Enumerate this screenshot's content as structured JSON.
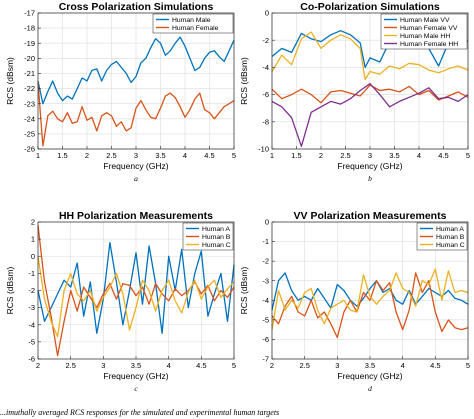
{
  "figure_caption": "...imuthally averaged RCS responses for the simulated and experimental human targets",
  "chart_data": [
    {
      "type": "line",
      "title": "Cross Polarization Simulations",
      "xlabel": "Frequency (GHz)",
      "ylabel": "RCS (dBsm)",
      "sublabel": "a",
      "xlim": [
        1,
        5
      ],
      "ylim": [
        -26,
        -17
      ],
      "xticks": [
        1,
        1.5,
        2,
        2.5,
        3,
        3.5,
        4,
        4.5,
        5
      ],
      "yticks": [
        -26,
        -25,
        -24,
        -23,
        -22,
        -21,
        -20,
        -19,
        -18,
        -17
      ],
      "grid": true,
      "legend_position": "top-right",
      "series": [
        {
          "name": "Human Male",
          "color": "#0072BD",
          "x": [
            1.0,
            1.1,
            1.2,
            1.3,
            1.4,
            1.5,
            1.6,
            1.7,
            1.8,
            1.9,
            2.0,
            2.1,
            2.2,
            2.3,
            2.4,
            2.5,
            2.6,
            2.7,
            2.8,
            2.9,
            3.0,
            3.1,
            3.2,
            3.3,
            3.4,
            3.5,
            3.6,
            3.7,
            3.8,
            3.9,
            4.0,
            4.1,
            4.2,
            4.3,
            4.4,
            4.5,
            4.6,
            4.7,
            4.8,
            4.9,
            5.0
          ],
          "y": [
            -21.5,
            -23.0,
            -22.2,
            -21.5,
            -22.3,
            -22.8,
            -22.5,
            -22.7,
            -22.0,
            -21.3,
            -21.5,
            -20.8,
            -20.7,
            -21.5,
            -20.8,
            -20.4,
            -20.2,
            -20.6,
            -21.0,
            -21.6,
            -21.2,
            -20.3,
            -20.0,
            -19.3,
            -18.7,
            -19.0,
            -19.8,
            -19.5,
            -19.0,
            -18.6,
            -19.2,
            -20.0,
            -20.8,
            -20.6,
            -20.0,
            -19.6,
            -19.5,
            -19.9,
            -20.2,
            -19.5,
            -18.8
          ]
        },
        {
          "name": "Human Female",
          "color": "#D95319",
          "x": [
            1.0,
            1.1,
            1.2,
            1.3,
            1.4,
            1.5,
            1.6,
            1.7,
            1.8,
            1.9,
            2.0,
            2.1,
            2.2,
            2.3,
            2.4,
            2.5,
            2.6,
            2.7,
            2.8,
            2.9,
            3.0,
            3.1,
            3.2,
            3.3,
            3.4,
            3.5,
            3.6,
            3.7,
            3.8,
            3.9,
            4.0,
            4.1,
            4.2,
            4.3,
            4.4,
            4.5,
            4.6,
            4.7,
            4.8,
            4.9,
            5.0
          ],
          "y": [
            -21.6,
            -25.8,
            -23.8,
            -23.5,
            -24.0,
            -24.2,
            -23.6,
            -24.3,
            -24.2,
            -23.2,
            -24.1,
            -23.9,
            -24.8,
            -23.8,
            -23.6,
            -23.8,
            -24.5,
            -24.2,
            -24.8,
            -24.6,
            -23.3,
            -22.8,
            -23.4,
            -23.9,
            -24.0,
            -23.3,
            -22.5,
            -22.3,
            -22.6,
            -23.2,
            -23.9,
            -23.4,
            -22.7,
            -22.3,
            -23.4,
            -23.6,
            -24.0,
            -23.6,
            -23.2,
            -23.0,
            -22.8
          ]
        }
      ]
    },
    {
      "type": "line",
      "title": "Co-Polarization Simulations",
      "xlabel": "Frequency (GHz)",
      "ylabel": "RCS (dBsm)",
      "sublabel": "b",
      "xlim": [
        1,
        5
      ],
      "ylim": [
        -10,
        0
      ],
      "xticks": [
        1,
        1.5,
        2,
        2.5,
        3,
        3.5,
        4,
        4.5,
        5
      ],
      "yticks": [
        -10,
        -8,
        -6,
        -4,
        -2,
        0
      ],
      "grid": true,
      "legend_position": "top-right",
      "series": [
        {
          "name": "Human Male VV",
          "color": "#0072BD",
          "x": [
            1.0,
            1.2,
            1.4,
            1.6,
            1.8,
            2.0,
            2.2,
            2.4,
            2.6,
            2.8,
            2.9,
            3.0,
            3.2,
            3.4,
            3.6,
            3.8,
            4.0,
            4.2,
            4.4,
            4.6,
            4.8,
            5.0
          ],
          "y": [
            -3.2,
            -2.6,
            -2.9,
            -1.5,
            -1.9,
            -2.1,
            -1.6,
            -1.3,
            -1.6,
            -2.2,
            -4.0,
            -3.3,
            -3.6,
            -2.1,
            -1.2,
            -1.6,
            -1.0,
            -2.6,
            -3.9,
            -2.2,
            -1.6,
            -2.1
          ]
        },
        {
          "name": "Human Female VV",
          "color": "#D95319",
          "x": [
            1.0,
            1.2,
            1.4,
            1.6,
            1.8,
            2.0,
            2.2,
            2.4,
            2.6,
            2.8,
            3.0,
            3.2,
            3.4,
            3.6,
            3.8,
            4.0,
            4.2,
            4.4,
            4.6,
            4.8,
            5.0
          ],
          "y": [
            -5.6,
            -6.3,
            -6.0,
            -5.6,
            -6.0,
            -6.6,
            -5.8,
            -5.7,
            -5.9,
            -6.1,
            -5.3,
            -5.7,
            -5.6,
            -5.8,
            -5.4,
            -6.0,
            -5.7,
            -6.4,
            -6.1,
            -5.8,
            -6.2
          ]
        },
        {
          "name": "Human Male HH",
          "color": "#EDB120",
          "x": [
            1.0,
            1.2,
            1.4,
            1.6,
            1.8,
            2.0,
            2.2,
            2.4,
            2.6,
            2.8,
            2.9,
            3.0,
            3.2,
            3.4,
            3.6,
            3.8,
            4.0,
            4.2,
            4.4,
            4.6,
            4.8,
            5.0
          ],
          "y": [
            -4.3,
            -3.1,
            -3.8,
            -1.9,
            -1.4,
            -2.6,
            -2.0,
            -1.6,
            -1.9,
            -2.6,
            -4.9,
            -4.3,
            -4.5,
            -3.9,
            -4.1,
            -3.7,
            -3.8,
            -4.2,
            -4.4,
            -4.1,
            -3.9,
            -4.2
          ]
        },
        {
          "name": "Human Female HH",
          "color": "#7E2F8E",
          "x": [
            1.0,
            1.2,
            1.4,
            1.6,
            1.8,
            2.0,
            2.2,
            2.4,
            2.6,
            2.8,
            3.0,
            3.2,
            3.4,
            3.6,
            3.8,
            4.0,
            4.2,
            4.4,
            4.6,
            4.8,
            5.0
          ],
          "y": [
            -6.5,
            -6.9,
            -7.7,
            -9.8,
            -7.3,
            -6.9,
            -6.5,
            -6.7,
            -6.3,
            -5.7,
            -5.2,
            -6.0,
            -6.9,
            -6.5,
            -6.2,
            -5.9,
            -5.5,
            -6.3,
            -6.2,
            -6.5,
            -6.0
          ]
        }
      ]
    },
    {
      "type": "line",
      "title": "HH Polarization Measurements",
      "xlabel": "Frequency (GHz)",
      "ylabel": "RCS (dBsm)",
      "sublabel": "c",
      "xlim": [
        2,
        5
      ],
      "ylim": [
        -6,
        2
      ],
      "xticks": [
        2,
        2.5,
        3,
        3.5,
        4,
        4.5,
        5
      ],
      "yticks": [
        -6,
        -5,
        -4,
        -3,
        -2,
        -1,
        0,
        1,
        2
      ],
      "grid": true,
      "legend_position": "top-right",
      "series": [
        {
          "name": "Human A",
          "color": "#0072BD",
          "x": [
            2.0,
            2.1,
            2.2,
            2.3,
            2.4,
            2.5,
            2.6,
            2.7,
            2.8,
            2.9,
            3.0,
            3.1,
            3.2,
            3.3,
            3.4,
            3.5,
            3.6,
            3.7,
            3.8,
            3.9,
            4.0,
            4.1,
            4.2,
            4.3,
            4.4,
            4.5,
            4.6,
            4.7,
            4.8,
            4.9,
            5.0
          ],
          "y": [
            -2.0,
            -3.8,
            -3.0,
            -2.2,
            -1.4,
            -1.8,
            -0.4,
            -3.5,
            -1.5,
            -4.5,
            -2.5,
            0.8,
            -1.5,
            -4.0,
            -2.0,
            0.2,
            -2.8,
            0.6,
            -1.6,
            -4.5,
            0.0,
            -2.0,
            0.4,
            -3.0,
            -1.0,
            0.3,
            -3.5,
            -2.2,
            -1.0,
            -3.8,
            -0.5
          ]
        },
        {
          "name": "Human B",
          "color": "#D95319",
          "x": [
            2.0,
            2.1,
            2.2,
            2.3,
            2.4,
            2.5,
            2.6,
            2.7,
            2.8,
            2.9,
            3.0,
            3.1,
            3.2,
            3.3,
            3.4,
            3.5,
            3.6,
            3.7,
            3.8,
            3.9,
            4.0,
            4.1,
            4.2,
            4.3,
            4.4,
            4.5,
            4.6,
            4.7,
            4.8,
            4.9,
            5.0
          ],
          "y": [
            1.8,
            -1.5,
            -3.5,
            -5.8,
            -3.8,
            -2.0,
            -3.2,
            -1.8,
            -2.4,
            -3.0,
            -2.2,
            -1.6,
            -2.5,
            -1.6,
            -1.7,
            -2.3,
            -1.8,
            -2.8,
            -1.6,
            -2.2,
            -2.6,
            -1.9,
            -2.3,
            -2.0,
            -1.5,
            -2.2,
            -1.7,
            -2.6,
            -2.0,
            -2.4,
            -1.8
          ]
        },
        {
          "name": "Human C",
          "color": "#EDB120",
          "x": [
            2.0,
            2.1,
            2.2,
            2.3,
            2.4,
            2.5,
            2.6,
            2.7,
            2.8,
            2.9,
            3.0,
            3.1,
            3.2,
            3.3,
            3.4,
            3.5,
            3.6,
            3.7,
            3.8,
            3.9,
            4.0,
            4.1,
            4.2,
            4.3,
            4.4,
            4.5,
            4.6,
            4.7,
            4.8,
            4.9,
            5.0
          ],
          "y": [
            0.0,
            -2.5,
            -3.8,
            -4.7,
            -2.0,
            -1.0,
            -2.2,
            -2.6,
            -2.0,
            -3.2,
            -2.4,
            -1.8,
            -1.0,
            -2.2,
            -4.3,
            -3.0,
            -1.4,
            -2.0,
            -3.2,
            -2.0,
            -1.4,
            -2.6,
            -3.3,
            -2.1,
            -1.4,
            -2.5,
            -1.8,
            -1.4,
            -2.4,
            -1.9,
            -1.5
          ]
        }
      ]
    },
    {
      "type": "line",
      "title": "VV Polarization Measurements",
      "xlabel": "Frequency (GHz)",
      "ylabel": "RCS (dBsm)",
      "sublabel": "d",
      "xlim": [
        2,
        5
      ],
      "ylim": [
        -7,
        0
      ],
      "xticks": [
        2,
        2.5,
        3,
        3.5,
        4,
        4.5,
        5
      ],
      "yticks": [
        -7,
        -6,
        -5,
        -4,
        -3,
        -2,
        -1,
        0
      ],
      "grid": true,
      "legend_position": "top-right",
      "series": [
        {
          "name": "Human A",
          "color": "#0072BD",
          "x": [
            2.0,
            2.1,
            2.2,
            2.3,
            2.4,
            2.5,
            2.6,
            2.7,
            2.8,
            2.9,
            3.0,
            3.1,
            3.2,
            3.3,
            3.4,
            3.5,
            3.6,
            3.7,
            3.8,
            3.9,
            4.0,
            4.1,
            4.2,
            4.3,
            4.4,
            4.5,
            4.6,
            4.7,
            4.8,
            4.9,
            5.0
          ],
          "y": [
            -4.5,
            -3.0,
            -2.6,
            -3.5,
            -4.0,
            -3.8,
            -4.0,
            -3.4,
            -3.9,
            -4.4,
            -3.2,
            -3.5,
            -4.0,
            -4.3,
            -3.9,
            -3.4,
            -3.0,
            -3.6,
            -3.4,
            -4.0,
            -4.2,
            -3.5,
            -4.2,
            -3.8,
            -3.4,
            -3.6,
            -3.8,
            -3.5,
            -3.9,
            -4.0,
            -4.2
          ]
        },
        {
          "name": "Human B",
          "color": "#D95319",
          "x": [
            2.0,
            2.1,
            2.2,
            2.3,
            2.4,
            2.5,
            2.6,
            2.7,
            2.8,
            2.9,
            3.0,
            3.1,
            3.2,
            3.3,
            3.4,
            3.5,
            3.6,
            3.7,
            3.8,
            3.9,
            4.0,
            4.1,
            4.2,
            4.3,
            4.4,
            4.5,
            4.6,
            4.7,
            4.8,
            4.9,
            5.0
          ],
          "y": [
            -4.8,
            -5.2,
            -4.3,
            -3.8,
            -4.6,
            -4.8,
            -4.0,
            -4.9,
            -4.6,
            -5.2,
            -5.9,
            -4.6,
            -4.0,
            -4.6,
            -3.6,
            -4.0,
            -3.0,
            -3.5,
            -3.1,
            -4.6,
            -5.5,
            -4.5,
            -2.6,
            -3.6,
            -3.0,
            -4.6,
            -5.6,
            -5.0,
            -5.4,
            -5.5,
            -5.4
          ]
        },
        {
          "name": "Human C",
          "color": "#EDB120",
          "x": [
            2.0,
            2.1,
            2.2,
            2.3,
            2.4,
            2.5,
            2.6,
            2.7,
            2.8,
            2.9,
            3.0,
            3.1,
            3.2,
            3.3,
            3.4,
            3.5,
            3.6,
            3.7,
            3.8,
            3.9,
            4.0,
            4.1,
            4.2,
            4.3,
            4.4,
            4.5,
            4.6,
            4.7,
            4.8,
            4.9,
            5.0
          ],
          "y": [
            -5.5,
            -3.5,
            -4.5,
            -4.0,
            -4.4,
            -3.6,
            -3.4,
            -4.5,
            -5.2,
            -4.4,
            -4.2,
            -4.0,
            -4.5,
            -4.6,
            -2.7,
            -3.8,
            -4.2,
            -3.8,
            -3.5,
            -2.6,
            -3.4,
            -3.6,
            -4.3,
            -3.0,
            -3.2,
            -2.4,
            -4.0,
            -2.5,
            -3.6,
            -3.5,
            -3.6
          ]
        }
      ]
    }
  ]
}
